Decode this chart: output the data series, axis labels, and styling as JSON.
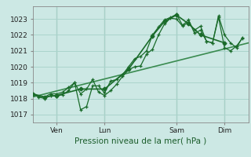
{
  "background_color": "#cce8e4",
  "grid_color": "#aad4cc",
  "line_color": "#1a6b2a",
  "trend_color": "#3a8b50",
  "xlabel": "Pression niveau de la mer( hPa )",
  "ylim": [
    1016.5,
    1023.8
  ],
  "yticks": [
    1017,
    1018,
    1019,
    1020,
    1021,
    1022,
    1023
  ],
  "x_tick_positions": [
    24,
    72,
    144,
    192
  ],
  "x_tick_labels": [
    "Ven",
    "Lun",
    "Sam",
    "Dim"
  ],
  "x_vline_positions": [
    24,
    72,
    144,
    192
  ],
  "xlim": [
    0,
    216
  ],
  "series1_x": [
    0,
    6,
    12,
    18,
    24,
    30,
    36,
    42,
    48,
    54,
    60,
    66,
    72,
    78,
    84,
    90,
    96,
    102,
    108,
    114,
    120,
    126,
    132,
    138,
    144,
    150,
    156,
    162,
    168,
    174,
    180,
    186,
    192,
    198,
    204,
    210
  ],
  "series1_y": [
    1018.3,
    1018.1,
    1018.0,
    1018.2,
    1018.15,
    1018.25,
    1018.5,
    1019.0,
    1018.3,
    1018.6,
    1019.2,
    1018.4,
    1018.2,
    1018.5,
    1018.9,
    1019.4,
    1019.8,
    1020.0,
    1020.05,
    1020.8,
    1021.1,
    1022.0,
    1022.7,
    1023.05,
    1023.0,
    1022.55,
    1022.8,
    1022.3,
    1022.55,
    1021.6,
    1021.5,
    1023.1,
    1021.2,
    1021.0,
    1021.3,
    1021.8
  ],
  "series2_x": [
    0,
    6,
    12,
    18,
    24,
    30,
    36,
    42,
    48,
    54,
    60,
    66,
    72,
    78,
    84,
    90,
    96,
    102,
    108,
    114,
    120,
    126,
    132,
    138,
    144,
    150,
    156,
    162,
    168,
    174,
    180,
    186,
    192,
    198,
    204,
    210
  ],
  "series2_y": [
    1018.3,
    1018.15,
    1018.1,
    1018.3,
    1018.3,
    1018.4,
    1018.7,
    1019.0,
    1017.3,
    1017.5,
    1018.8,
    1018.8,
    1018.35,
    1019.1,
    1019.2,
    1019.5,
    1020.0,
    1020.5,
    1020.65,
    1021.0,
    1022.0,
    1022.5,
    1022.95,
    1023.1,
    1023.3,
    1022.6,
    1022.95,
    1022.1,
    1022.3,
    1021.6,
    1021.5,
    1023.2,
    1022.0,
    1021.5,
    1021.2,
    1021.85
  ],
  "series3_x": [
    0,
    12,
    24,
    48,
    72,
    96,
    120,
    132,
    144,
    156,
    168,
    192
  ],
  "series3_y": [
    1018.3,
    1018.1,
    1018.2,
    1018.6,
    1018.6,
    1019.85,
    1021.95,
    1022.85,
    1023.25,
    1022.7,
    1022.0,
    1021.5
  ],
  "trend_x": [
    0,
    216
  ],
  "trend_y": [
    1018.1,
    1021.5
  ],
  "figsize": [
    3.2,
    2.0
  ],
  "dpi": 100
}
